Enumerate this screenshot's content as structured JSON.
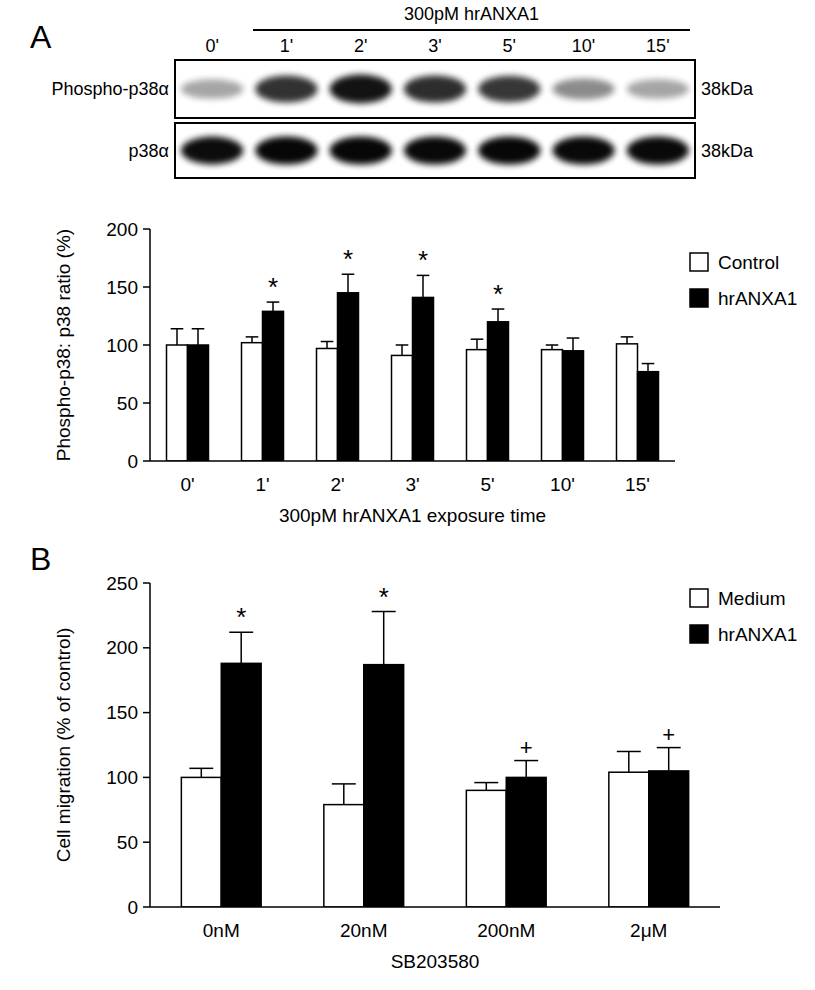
{
  "chart_data": [
    {
      "type": "blot",
      "panel": "A",
      "title": "300pM hrANXA1",
      "categories": [
        "0'",
        "1'",
        "2'",
        "3'",
        "5'",
        "10'",
        "15'"
      ],
      "rows": [
        {
          "label": "Phospho-p38α",
          "size": "38kDa",
          "values": [
            0.35,
            0.8,
            0.92,
            0.82,
            0.78,
            0.45,
            0.35
          ]
        },
        {
          "label": "p38α",
          "size": "38kDa",
          "values": [
            0.95,
            0.97,
            0.97,
            0.96,
            0.97,
            0.96,
            0.96
          ]
        }
      ]
    },
    {
      "type": "bar",
      "categories": [
        "0'",
        "1'",
        "2'",
        "3'",
        "5'",
        "10'",
        "15'"
      ],
      "x_label": "300pM hrANXA1 exposure time",
      "y_label": "Phospho-p38: p38 ratio (%)",
      "series": [
        {
          "name": "Control",
          "color": "#ffffff",
          "values": [
            100,
            102,
            97,
            91,
            96,
            96,
            101
          ],
          "errors": [
            14,
            5,
            6,
            9,
            9,
            4,
            6
          ]
        },
        {
          "name": "hrANXA1",
          "color": "#000000",
          "values": [
            100,
            129,
            145,
            141,
            120,
            95,
            77
          ],
          "errors": [
            14,
            8,
            16,
            19,
            11,
            11,
            7
          ],
          "annotations": [
            null,
            "*",
            "*",
            "*",
            "*",
            null,
            null
          ]
        }
      ],
      "ylim": [
        0,
        200
      ],
      "yticks": [
        0,
        50,
        100,
        150,
        200
      ],
      "grid": false,
      "legend": "right"
    },
    {
      "type": "bar",
      "panel": "B",
      "categories": [
        "0nM",
        "20nM",
        "200nM",
        "2μM"
      ],
      "x_label": "SB203580",
      "y_label": "Cell migration (% of control)",
      "series": [
        {
          "name": "Medium",
          "color": "#ffffff",
          "values": [
            100,
            79,
            90,
            104
          ],
          "errors": [
            7,
            16,
            6,
            16
          ]
        },
        {
          "name": "hrANXA1",
          "color": "#000000",
          "values": [
            188,
            187,
            100,
            105
          ],
          "errors": [
            24,
            41,
            13,
            18
          ],
          "annotations": [
            "*",
            "*",
            "+",
            "+"
          ]
        }
      ],
      "ylim": [
        0,
        250
      ],
      "yticks": [
        0,
        50,
        100,
        150,
        200,
        250
      ],
      "grid": false,
      "legend": "right"
    }
  ]
}
